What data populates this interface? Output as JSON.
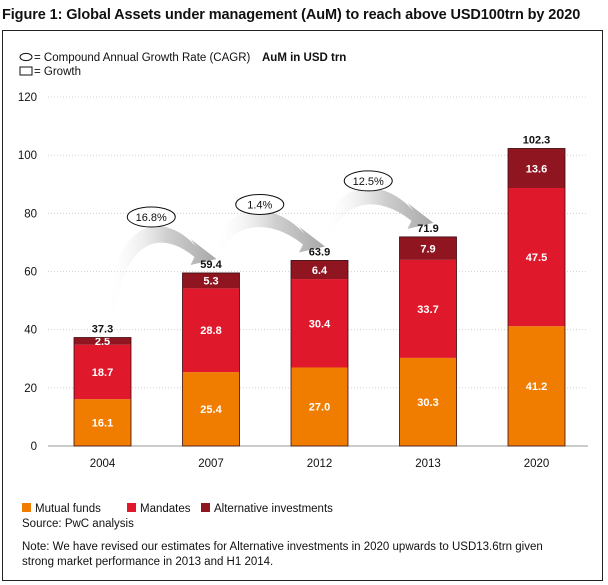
{
  "figure": {
    "title": "Figure 1: Global Assets under management (AuM) to reach above USD100trn by 2020",
    "key_cagr_label": "= Compound Annual Growth Rate (CAGR)",
    "key_growth_label": "= Growth",
    "unit_label": "AuM in USD trn",
    "source": "Source: PwC analysis",
    "note_line1": "Note: We have revised our estimates for Alternative investments in 2020 upwards to USD13.6trn given",
    "note_line2": "strong market performance in 2013 and H1 2014."
  },
  "chart_data": {
    "type": "bar",
    "stacked": true,
    "categories": [
      "2004",
      "2007",
      "2012",
      "2013",
      "2020"
    ],
    "series": [
      {
        "name": "Mutual funds",
        "color": "#f07d00",
        "values": [
          16.1,
          25.4,
          27.0,
          30.3,
          41.2
        ],
        "labels": [
          "16.1",
          "25.4",
          "27.0",
          "30.3",
          "41.2"
        ]
      },
      {
        "name": "Mandates",
        "color": "#e0182b",
        "values": [
          18.7,
          28.8,
          30.4,
          33.7,
          47.5
        ],
        "labels": [
          "18.7",
          "28.8",
          "30.4",
          "33.7",
          "47.5"
        ]
      },
      {
        "name": "Alternative investments",
        "color": "#8f1620",
        "values": [
          2.5,
          5.3,
          6.4,
          7.9,
          13.6
        ],
        "labels": [
          "2.5",
          "5.3",
          "6.4",
          "7.9",
          "13.6"
        ]
      }
    ],
    "totals": [
      "37.3",
      "59.4",
      "63.9",
      "71.9",
      "102.3"
    ],
    "cagr": [
      "16.8%",
      "1.4%",
      "12.5%"
    ],
    "yticks": [
      "0",
      "20",
      "40",
      "60",
      "80",
      "100",
      "120"
    ],
    "ylim": [
      0,
      120
    ],
    "legend_position": "bottom-left"
  }
}
